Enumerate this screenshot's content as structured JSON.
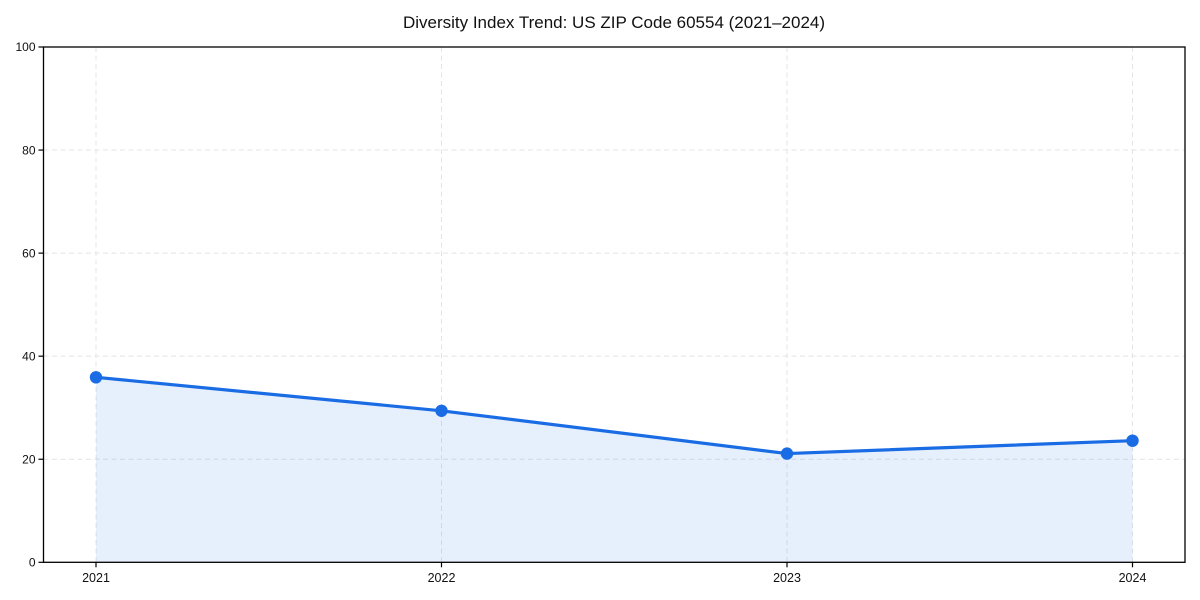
{
  "page": {
    "background": "#ffffff"
  },
  "chart_data": {
    "type": "area",
    "title": "Diversity Index Trend: US ZIP Code 60554 (2021–2024)",
    "x": [
      "2021",
      "2022",
      "2023",
      "2024"
    ],
    "values": [
      35.9,
      29.4,
      21.1,
      23.6
    ],
    "xlabel": "",
    "ylabel": "",
    "ylim": [
      0,
      100
    ],
    "yticks": [
      0,
      20,
      40,
      60,
      80,
      100
    ],
    "grid": {
      "visible": true,
      "style": "dashed",
      "color": "#e4e4e4"
    },
    "legend_position": "none",
    "marker": "circle",
    "colors": {
      "line": "#1a6ce4",
      "marker": "#1a6ce4",
      "fill": "rgba(26,108,228,0.11)",
      "axis": "#000000",
      "tick_label": "#111111",
      "title": "#111111",
      "background": "#ffffff"
    }
  }
}
